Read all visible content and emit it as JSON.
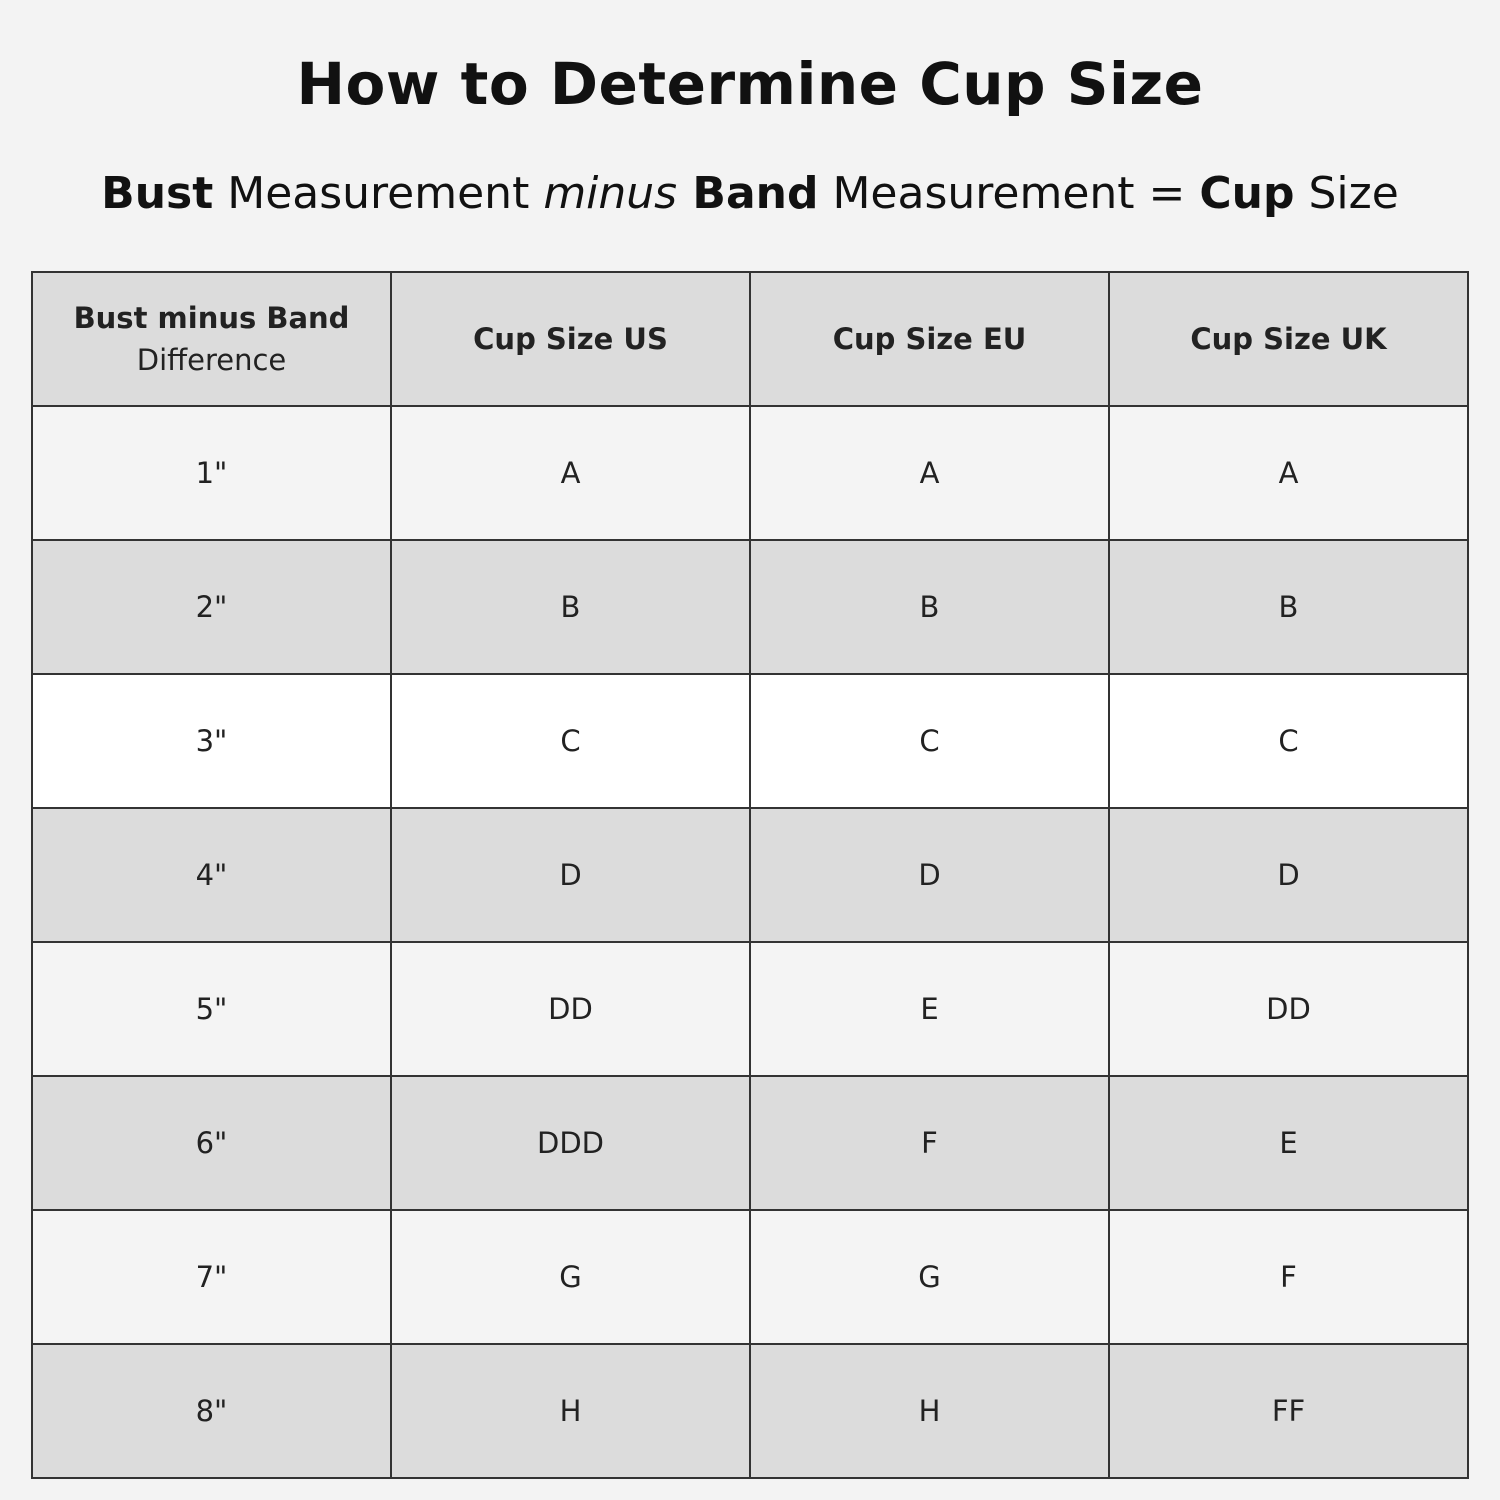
{
  "title": "How to Determine Cup Size",
  "formula": {
    "part1_bold": "Bust",
    "part2": " Measurement ",
    "part3_italic": "minus",
    "part4_bold": " Band",
    "part5": " Measurement = ",
    "part6_bold": "Cup",
    "part7": " Size"
  },
  "table": {
    "headers": [
      {
        "label": "Bust minus Band",
        "sub": "Difference"
      },
      {
        "label": "Cup Size US"
      },
      {
        "label": "Cup Size EU"
      },
      {
        "label": "Cup Size UK"
      }
    ],
    "rows": [
      [
        "1\"",
        "A",
        "A",
        "A"
      ],
      [
        "2\"",
        "B",
        "B",
        "B"
      ],
      [
        "3\"",
        "C",
        "C",
        "C"
      ],
      [
        "4\"",
        "D",
        "D",
        "D"
      ],
      [
        "5\"",
        "DD",
        "E",
        "DD"
      ],
      [
        "6\"",
        "DDD",
        "F",
        "E"
      ],
      [
        "7\"",
        "G",
        "G",
        "F"
      ],
      [
        "8\"",
        "H",
        "H",
        "FF"
      ]
    ]
  },
  "colors": {
    "background": "#f3f3f3",
    "header": "#dcdcdc",
    "row_light": "#f4f4f4",
    "row_dark": "#dcdcdc",
    "row_highlight": "#ffffff",
    "border": "#333333"
  }
}
